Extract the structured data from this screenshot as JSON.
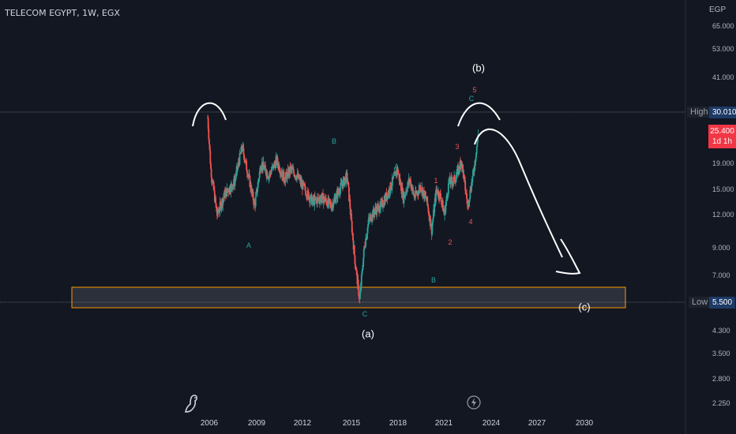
{
  "symbol": "TELECOM EGYPT, 1W, EGX",
  "currency": "EGP",
  "price_ticks": [
    "65.000",
    "53.000",
    "41.000",
    "19.000",
    "15.000",
    "12.000",
    "9.000",
    "7.000",
    "4.300",
    "3.500",
    "2.800",
    "2.250"
  ],
  "x_ticks": [
    "2006",
    "2009",
    "2012",
    "2015",
    "2018",
    "2021",
    "2024",
    "2027",
    "2030"
  ],
  "high": {
    "label": "High",
    "value": "30.010"
  },
  "low": {
    "label": "Low",
    "value": "5.500"
  },
  "current": {
    "price": "25.400",
    "countdown": "1d 1h"
  },
  "colors": {
    "up": "#26a69a",
    "down": "#ef5350",
    "background": "#131722",
    "support_zone": "#ff9800",
    "drawing": "#ffffff"
  },
  "wave_labels": [
    {
      "text": "A",
      "color": "#26a69a"
    },
    {
      "text": "B",
      "color": "#26a69a"
    },
    {
      "text": "C",
      "color": "#26a69a"
    },
    {
      "text": "A",
      "color": "#26a69a"
    },
    {
      "text": "B",
      "color": "#26a69a"
    },
    {
      "text": "C",
      "color": "#26a69a"
    },
    {
      "text": "1",
      "color": "#ef5350"
    },
    {
      "text": "2",
      "color": "#ef5350"
    },
    {
      "text": "3",
      "color": "#ef5350"
    },
    {
      "text": "4",
      "color": "#ef5350"
    },
    {
      "text": "5",
      "color": "#ef5350"
    }
  ],
  "annotations": {
    "a": "(a)",
    "b": "(b)",
    "c": "(c)"
  },
  "chart_data": {
    "type": "line",
    "log_scale": true,
    "grid": false,
    "ylim": [
      2.1,
      75
    ],
    "xlim": [
      2002.8,
      2032.3
    ],
    "x": [
      2005.9,
      2006.1,
      2006.5,
      2007.0,
      2007.6,
      2008.1,
      2008.5,
      2008.9,
      2009.3,
      2009.8,
      2010.3,
      2010.8,
      2011.2,
      2011.6,
      2012.1,
      2012.6,
      2013.2,
      2013.8,
      2014.3,
      2014.8,
      2015.3,
      2015.6,
      2015.9,
      2016.2,
      2016.6,
      2017.0,
      2017.5,
      2018.0,
      2018.4,
      2018.8,
      2019.1,
      2019.5,
      2019.9,
      2020.2,
      2020.5,
      2020.8,
      2021.0,
      2021.3,
      2021.7,
      2022.1,
      2022.5,
      2022.9,
      2023.2
    ],
    "y": [
      28.5,
      18.0,
      12.0,
      14.5,
      16.0,
      22.0,
      17.0,
      13.0,
      19.0,
      17.0,
      19.5,
      16.5,
      18.0,
      17.0,
      15.0,
      13.5,
      14.0,
      13.0,
      15.0,
      17.0,
      8.0,
      5.6,
      9.0,
      11.5,
      12.5,
      13.0,
      15.0,
      18.0,
      14.0,
      16.5,
      14.0,
      15.5,
      13.5,
      10.5,
      15.0,
      14.0,
      12.0,
      16.0,
      16.5,
      19.5,
      13.0,
      18.0,
      25.4
    ],
    "series": [
      {
        "values": "weekly close (approx.)"
      }
    ]
  }
}
